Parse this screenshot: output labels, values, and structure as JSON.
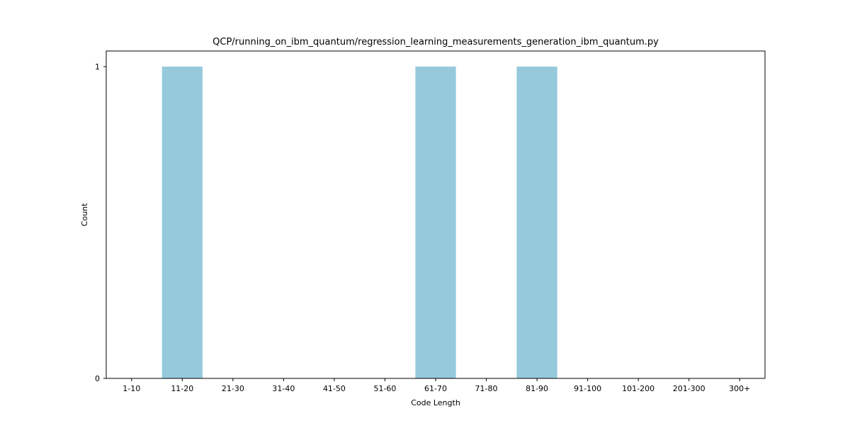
{
  "chart_data": {
    "type": "bar",
    "title": "QCP/running_on_ibm_quantum/regression_learning_measurements_generation_ibm_quantum.py",
    "xlabel": "Code Length",
    "ylabel": "Count",
    "categories": [
      "1-10",
      "11-20",
      "21-30",
      "31-40",
      "41-50",
      "51-60",
      "61-70",
      "71-80",
      "81-90",
      "91-100",
      "101-200",
      "201-300",
      "300+"
    ],
    "values": [
      0,
      1,
      0,
      0,
      0,
      0,
      1,
      0,
      1,
      0,
      0,
      0,
      0
    ],
    "ylim": [
      0,
      1
    ],
    "yticks": [
      0,
      1
    ],
    "bar_color": "#96c9dc",
    "grid": false,
    "legend": "none"
  }
}
